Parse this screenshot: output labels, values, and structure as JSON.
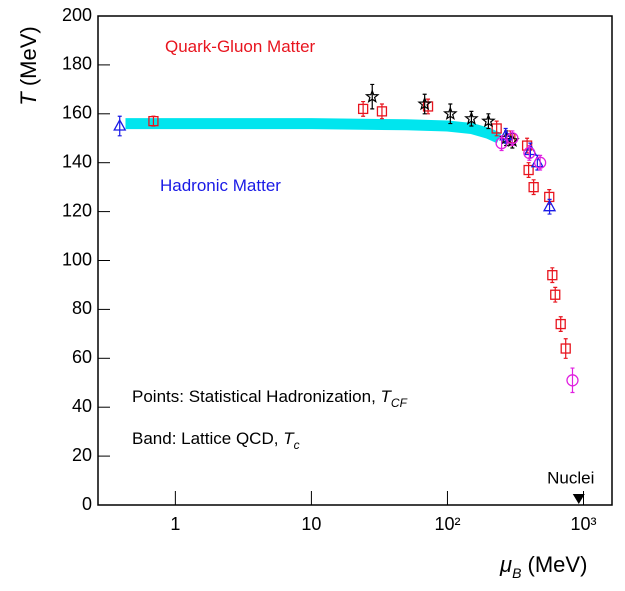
{
  "chart_data": {
    "type": "scatter",
    "x_log": true,
    "xlim": [
      0.27,
      1620
    ],
    "ylim": [
      0,
      200
    ],
    "xticks": [
      1,
      10,
      {
        "value": 100,
        "label": "10²"
      },
      {
        "value": 1000,
        "label": "10³"
      }
    ],
    "yticks": [
      0,
      20,
      40,
      60,
      80,
      100,
      120,
      140,
      160,
      180,
      200
    ],
    "y_label": {
      "symbol": "T",
      "unit": " (MeV)"
    },
    "x_label": {
      "symbol": "μ",
      "subscript": "B",
      "unit": " (MeV)"
    },
    "band": {
      "color": "#00e5ee",
      "x": [
        0.43,
        1,
        10,
        50,
        100,
        150,
        200,
        240
      ],
      "values": [
        156,
        156,
        156,
        155.5,
        155,
        154,
        152,
        150
      ]
    },
    "series": [
      {
        "marker": "square",
        "color": "#e8141e",
        "x": [
          0.69,
          24,
          33,
          72,
          230,
          290,
          385,
          395,
          430,
          560,
          590,
          620,
          680,
          740
        ],
        "values": [
          157,
          162,
          161,
          163,
          154,
          150,
          147,
          137,
          130,
          126,
          94,
          86,
          74,
          64
        ],
        "yerr": [
          2,
          3,
          3,
          3,
          3,
          3,
          3,
          3,
          3,
          3,
          3,
          3,
          3,
          4
        ]
      },
      {
        "marker": "star",
        "color": "#000000",
        "x": [
          28,
          68,
          105,
          150,
          200,
          270,
          300
        ],
        "values": [
          167,
          164,
          160,
          158,
          157,
          150,
          149
        ],
        "yerr": [
          5,
          4,
          4,
          3,
          3,
          3,
          3
        ]
      },
      {
        "marker": "triangle",
        "color": "#1a1ae6",
        "x": [
          0.39,
          268,
          407,
          458,
          563
        ],
        "values": [
          155,
          151,
          145,
          140,
          122
        ],
        "yerr": [
          4,
          3,
          3,
          3,
          3
        ]
      },
      {
        "marker": "circle",
        "color": "#e020e0",
        "x": [
          250,
          300,
          400,
          480,
          830
        ],
        "values": [
          148,
          150,
          144,
          140,
          51
        ],
        "yerr": [
          3,
          3,
          3,
          3,
          5
        ]
      }
    ],
    "annotations": [
      {
        "text": "Quark-Gluon Matter",
        "color": "#e8141e"
      },
      {
        "text": "Hadronic Matter",
        "color": "#1a1ae6"
      },
      {
        "text": "Points: Statistical Hadronization, ",
        "symbol": "T",
        "subscript": "CF"
      },
      {
        "text": "Band: Lattice QCD, ",
        "symbol": "T",
        "subscript": "c"
      },
      {
        "text": "Nuclei",
        "x": 923,
        "y": 0
      }
    ]
  }
}
